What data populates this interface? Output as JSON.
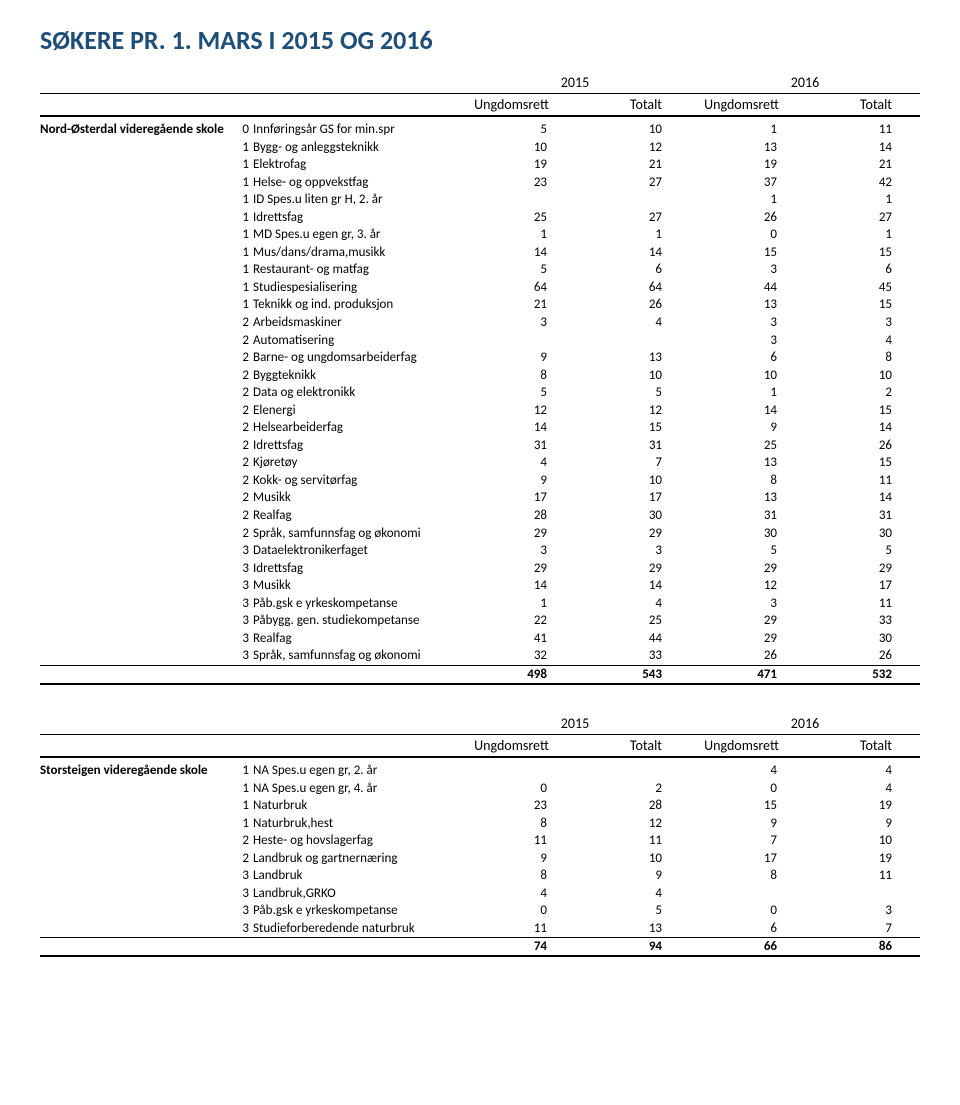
{
  "title": "SØKERE PR. 1. MARS I 2015 OG 2016",
  "colors": {
    "title": "#1f4e79",
    "text": "#000000",
    "background": "#ffffff"
  },
  "header": {
    "year1": "2015",
    "year2": "2016",
    "sub1": "Ungdomsrett",
    "sub2": "Totalt",
    "sub3": "Ungdomsrett",
    "sub4": "Totalt"
  },
  "sections": [
    {
      "school": "Nord-Østerdal videregående skole",
      "rows": [
        {
          "lvl": "0",
          "course": "Innføringsår GS for min.spr",
          "v": [
            "5",
            "10",
            "1",
            "11"
          ]
        },
        {
          "lvl": "1",
          "course": "Bygg- og anleggsteknikk",
          "v": [
            "10",
            "12",
            "13",
            "14"
          ]
        },
        {
          "lvl": "1",
          "course": "Elektrofag",
          "v": [
            "19",
            "21",
            "19",
            "21"
          ]
        },
        {
          "lvl": "1",
          "course": "Helse- og oppvekstfag",
          "v": [
            "23",
            "27",
            "37",
            "42"
          ]
        },
        {
          "lvl": "1",
          "course": "ID Spes.u liten gr H, 2. år",
          "v": [
            "",
            "",
            "1",
            "1"
          ]
        },
        {
          "lvl": "1",
          "course": "Idrettsfag",
          "v": [
            "25",
            "27",
            "26",
            "27"
          ]
        },
        {
          "lvl": "1",
          "course": "MD Spes.u egen gr, 3. år",
          "v": [
            "1",
            "1",
            "0",
            "1"
          ]
        },
        {
          "lvl": "1",
          "course": "Mus/dans/drama,musikk",
          "v": [
            "14",
            "14",
            "15",
            "15"
          ]
        },
        {
          "lvl": "1",
          "course": "Restaurant- og matfag",
          "v": [
            "5",
            "6",
            "3",
            "6"
          ]
        },
        {
          "lvl": "1",
          "course": "Studiespesialisering",
          "v": [
            "64",
            "64",
            "44",
            "45"
          ]
        },
        {
          "lvl": "1",
          "course": "Teknikk og ind. produksjon",
          "v": [
            "21",
            "26",
            "13",
            "15"
          ]
        },
        {
          "lvl": "2",
          "course": "Arbeidsmaskiner",
          "v": [
            "3",
            "4",
            "3",
            "3"
          ]
        },
        {
          "lvl": "2",
          "course": "Automatisering",
          "v": [
            "",
            "",
            "3",
            "4"
          ]
        },
        {
          "lvl": "2",
          "course": "Barne- og ungdomsarbeiderfag",
          "v": [
            "9",
            "13",
            "6",
            "8"
          ]
        },
        {
          "lvl": "2",
          "course": "Byggteknikk",
          "v": [
            "8",
            "10",
            "10",
            "10"
          ]
        },
        {
          "lvl": "2",
          "course": "Data og elektronikk",
          "v": [
            "5",
            "5",
            "1",
            "2"
          ]
        },
        {
          "lvl": "2",
          "course": "Elenergi",
          "v": [
            "12",
            "12",
            "14",
            "15"
          ]
        },
        {
          "lvl": "2",
          "course": "Helsearbeiderfag",
          "v": [
            "14",
            "15",
            "9",
            "14"
          ]
        },
        {
          "lvl": "2",
          "course": "Idrettsfag",
          "v": [
            "31",
            "31",
            "25",
            "26"
          ]
        },
        {
          "lvl": "2",
          "course": "Kjøretøy",
          "v": [
            "4",
            "7",
            "13",
            "15"
          ]
        },
        {
          "lvl": "2",
          "course": "Kokk- og servitørfag",
          "v": [
            "9",
            "10",
            "8",
            "11"
          ]
        },
        {
          "lvl": "2",
          "course": "Musikk",
          "v": [
            "17",
            "17",
            "13",
            "14"
          ]
        },
        {
          "lvl": "2",
          "course": "Realfag",
          "v": [
            "28",
            "30",
            "31",
            "31"
          ]
        },
        {
          "lvl": "2",
          "course": "Språk, samfunnsfag og økonomi",
          "v": [
            "29",
            "29",
            "30",
            "30"
          ]
        },
        {
          "lvl": "3",
          "course": "Dataelektronikerfaget",
          "v": [
            "3",
            "3",
            "5",
            "5"
          ]
        },
        {
          "lvl": "3",
          "course": "Idrettsfag",
          "v": [
            "29",
            "29",
            "29",
            "29"
          ]
        },
        {
          "lvl": "3",
          "course": "Musikk",
          "v": [
            "14",
            "14",
            "12",
            "17"
          ]
        },
        {
          "lvl": "3",
          "course": "Påb.gsk e yrkeskompetanse",
          "v": [
            "1",
            "4",
            "3",
            "11"
          ]
        },
        {
          "lvl": "3",
          "course": "Påbygg. gen. studiekompetanse",
          "v": [
            "22",
            "25",
            "29",
            "33"
          ]
        },
        {
          "lvl": "3",
          "course": "Realfag",
          "v": [
            "41",
            "44",
            "29",
            "30"
          ]
        },
        {
          "lvl": "3",
          "course": "Språk, samfunnsfag og økonomi",
          "v": [
            "32",
            "33",
            "26",
            "26"
          ]
        }
      ],
      "totals": [
        "498",
        "543",
        "471",
        "532"
      ]
    },
    {
      "school": "Storsteigen videregående skole",
      "rows": [
        {
          "lvl": "1",
          "course": "NA Spes.u egen gr, 2. år",
          "v": [
            "",
            "",
            "4",
            "4"
          ]
        },
        {
          "lvl": "1",
          "course": "NA Spes.u egen gr, 4. år",
          "v": [
            "0",
            "2",
            "0",
            "4"
          ]
        },
        {
          "lvl": "1",
          "course": "Naturbruk",
          "v": [
            "23",
            "28",
            "15",
            "19"
          ]
        },
        {
          "lvl": "1",
          "course": "Naturbruk,hest",
          "v": [
            "8",
            "12",
            "9",
            "9"
          ]
        },
        {
          "lvl": "2",
          "course": "Heste- og hovslagerfag",
          "v": [
            "11",
            "11",
            "7",
            "10"
          ]
        },
        {
          "lvl": "2",
          "course": "Landbruk og gartnernæring",
          "v": [
            "9",
            "10",
            "17",
            "19"
          ]
        },
        {
          "lvl": "3",
          "course": "Landbruk",
          "v": [
            "8",
            "9",
            "8",
            "11"
          ]
        },
        {
          "lvl": "3",
          "course": "Landbruk,GRKO",
          "v": [
            "4",
            "4",
            "",
            ""
          ]
        },
        {
          "lvl": "3",
          "course": "Påb.gsk e yrkeskompetanse",
          "v": [
            "0",
            "5",
            "0",
            "3"
          ]
        },
        {
          "lvl": "3",
          "course": "Studieforberedende naturbruk",
          "v": [
            "11",
            "13",
            "6",
            "7"
          ]
        }
      ],
      "totals": [
        "74",
        "94",
        "66",
        "86"
      ]
    }
  ]
}
